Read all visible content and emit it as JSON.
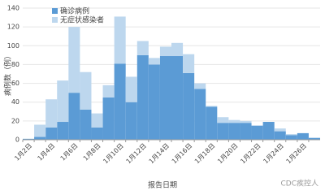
{
  "chart_data": {
    "type": "stacked_bar",
    "x_label": "报告日期",
    "y_label": "病例数（例）",
    "annotation": "CDC疾控人",
    "categories": [
      "1月2日",
      null,
      "1月4日",
      null,
      "1月6日",
      null,
      "1月8日",
      null,
      "1月10日",
      null,
      "1月12日",
      null,
      "1月14日",
      null,
      "1月16日",
      null,
      "1月18日",
      null,
      "1月20日",
      null,
      "1月22日",
      null,
      "1月24日",
      null,
      "1月26日",
      null
    ],
    "series": [
      {
        "name": "确诊病例",
        "color": "#5b9bd5",
        "values": [
          1,
          3,
          13,
          19,
          50,
          32,
          13,
          45,
          81,
          40,
          90,
          80,
          89,
          89,
          71,
          54,
          35,
          18,
          18,
          18,
          15,
          19,
          9,
          5,
          7,
          2
        ]
      },
      {
        "name": "无症状感染者",
        "color": "#bdd7ee",
        "values": [
          0,
          13,
          30,
          44,
          70,
          40,
          15,
          13,
          50,
          27,
          15,
          7,
          10,
          14,
          20,
          6,
          1,
          6,
          3,
          2,
          0,
          0,
          3,
          1,
          0,
          0
        ]
      }
    ],
    "ylim": [
      0,
      140
    ],
    "yticks": [
      0,
      20,
      40,
      60,
      80,
      100,
      120,
      140
    ],
    "grid": true,
    "legend": "top-left"
  }
}
